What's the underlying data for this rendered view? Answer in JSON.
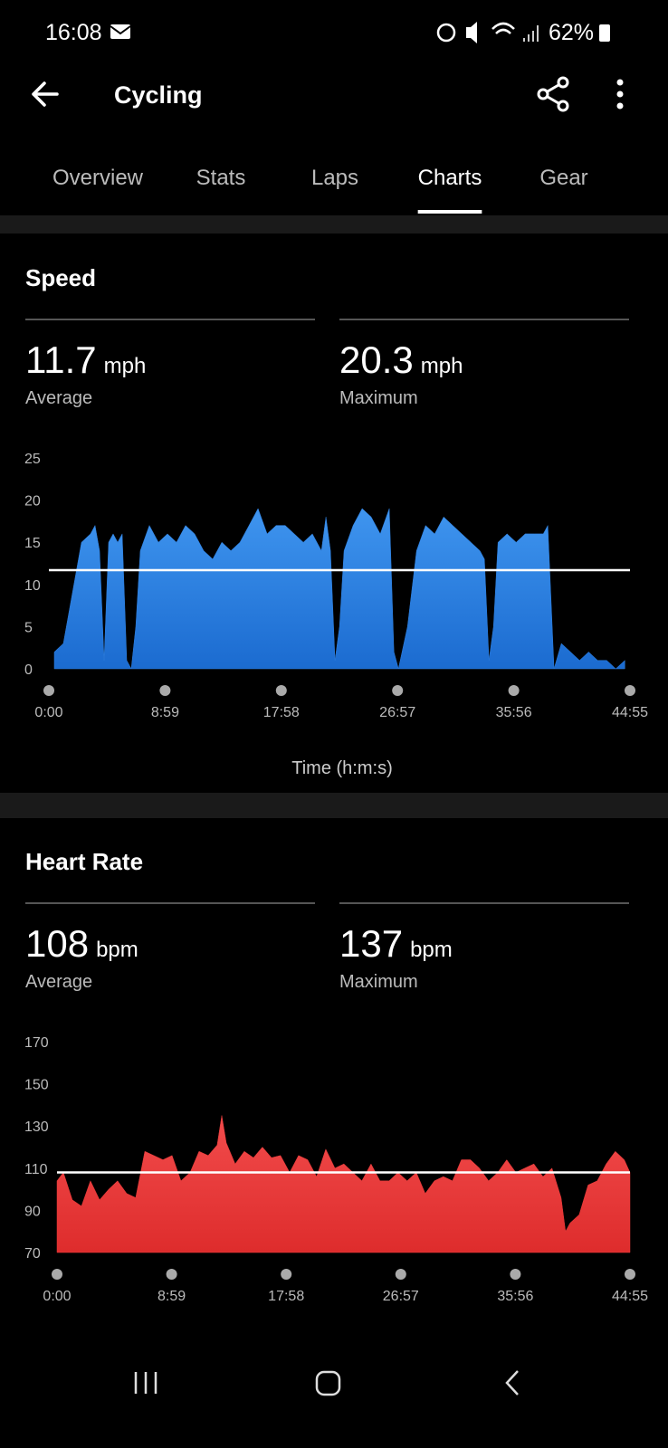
{
  "status_bar": {
    "time": "16:08",
    "battery": "62%"
  },
  "app_bar": {
    "title": "Cycling"
  },
  "tabs": {
    "items": [
      "Overview",
      "Stats",
      "Laps",
      "Charts",
      "Gear"
    ],
    "selected": 3
  },
  "chart_data": [
    {
      "type": "area",
      "title": "Speed",
      "stats": [
        {
          "value": 11.7,
          "unit": "mph",
          "label": "Average"
        },
        {
          "value": 20.3,
          "unit": "mph",
          "label": "Maximum"
        }
      ],
      "color": "#2f80e0",
      "x": [
        25,
        67,
        130,
        151,
        193,
        214,
        235,
        256,
        277,
        298,
        319,
        340,
        361,
        382,
        403,
        424,
        466,
        508,
        550,
        592,
        634,
        676,
        718,
        760,
        802,
        844,
        886,
        928,
        970,
        1012,
        1054,
        1096,
        1138,
        1180,
        1222,
        1264,
        1285,
        1306,
        1327,
        1348,
        1369,
        1411,
        1453,
        1495,
        1537,
        1579,
        1600,
        1621,
        1663,
        1705,
        1747,
        1789,
        1831,
        1873,
        1915,
        1957,
        1999,
        2020,
        2041,
        2062,
        2083,
        2125,
        2167,
        2209,
        2251,
        2293,
        2314,
        2343,
        2377,
        2419,
        2461,
        2503,
        2545,
        2587,
        2629,
        2671
      ],
      "values": [
        2,
        3,
        12,
        15,
        16,
        17,
        14,
        1,
        15,
        16,
        15,
        16,
        1,
        0,
        5,
        14,
        17,
        15,
        16,
        15,
        17,
        16,
        14,
        13,
        15,
        14,
        15,
        17,
        19,
        16,
        17,
        17,
        16,
        15,
        16,
        14,
        18,
        14,
        1,
        5,
        14,
        17,
        19,
        18,
        16,
        19,
        2,
        0,
        5,
        14,
        17,
        16,
        18,
        17,
        16,
        15,
        14,
        13,
        1,
        5,
        15,
        16,
        15,
        16,
        16,
        16,
        17,
        0,
        3,
        2,
        1,
        2,
        1,
        1,
        0,
        1
      ],
      "xlim": [
        0,
        2695
      ],
      "xticks": [
        {
          "value": 0,
          "label": "0:00"
        },
        {
          "value": 539,
          "label": "8:59"
        },
        {
          "value": 1078,
          "label": "17:58"
        },
        {
          "value": 1617,
          "label": "26:57"
        },
        {
          "value": 2156,
          "label": "35:56"
        },
        {
          "value": 2695,
          "label": "44:55"
        }
      ],
      "ylim": [
        0,
        25
      ],
      "yticks": [
        0,
        5,
        10,
        15,
        20,
        25
      ],
      "xlabel": "Time (h:m:s)"
    },
    {
      "type": "area",
      "title": "Heart Rate",
      "stats": [
        {
          "value": 108,
          "unit": "bpm",
          "label": "Average"
        },
        {
          "value": 137,
          "unit": "bpm",
          "label": "Maximum"
        }
      ],
      "color": "#e83a3a",
      "x": [
        0,
        30,
        72,
        115,
        157,
        200,
        243,
        285,
        328,
        370,
        413,
        455,
        498,
        541,
        583,
        626,
        668,
        711,
        753,
        775,
        796,
        838,
        881,
        924,
        966,
        1009,
        1051,
        1094,
        1136,
        1179,
        1221,
        1264,
        1307,
        1349,
        1392,
        1434,
        1477,
        1519,
        1562,
        1604,
        1647,
        1690,
        1732,
        1775,
        1817,
        1860,
        1902,
        1945,
        1987,
        2030,
        2073,
        2115,
        2158,
        2200,
        2243,
        2286,
        2328,
        2371,
        2392,
        2413,
        2456,
        2498,
        2541,
        2583,
        2626,
        2668,
        2695
      ],
      "values": [
        104,
        108,
        95,
        92,
        104,
        95,
        100,
        104,
        98,
        96,
        118,
        116,
        114,
        116,
        104,
        108,
        118,
        116,
        121,
        135,
        122,
        112,
        118,
        115,
        120,
        115,
        116,
        108,
        116,
        114,
        106,
        119,
        110,
        112,
        108,
        104,
        112,
        104,
        104,
        108,
        104,
        108,
        98,
        104,
        106,
        104,
        114,
        114,
        110,
        104,
        108,
        114,
        108,
        110,
        112,
        106,
        110,
        96,
        80,
        84,
        88,
        102,
        104,
        112,
        118,
        114,
        108
      ],
      "xlim": [
        0,
        2695
      ],
      "xticks": [
        {
          "value": 0,
          "label": "0:00"
        },
        {
          "value": 539,
          "label": "8:59"
        },
        {
          "value": 1078,
          "label": "17:58"
        },
        {
          "value": 1617,
          "label": "26:57"
        },
        {
          "value": 2156,
          "label": "35:56"
        },
        {
          "value": 2695,
          "label": "44:55"
        }
      ],
      "ylim": [
        70,
        170
      ],
      "yticks": [
        70,
        90,
        110,
        130,
        150,
        170
      ]
    }
  ]
}
